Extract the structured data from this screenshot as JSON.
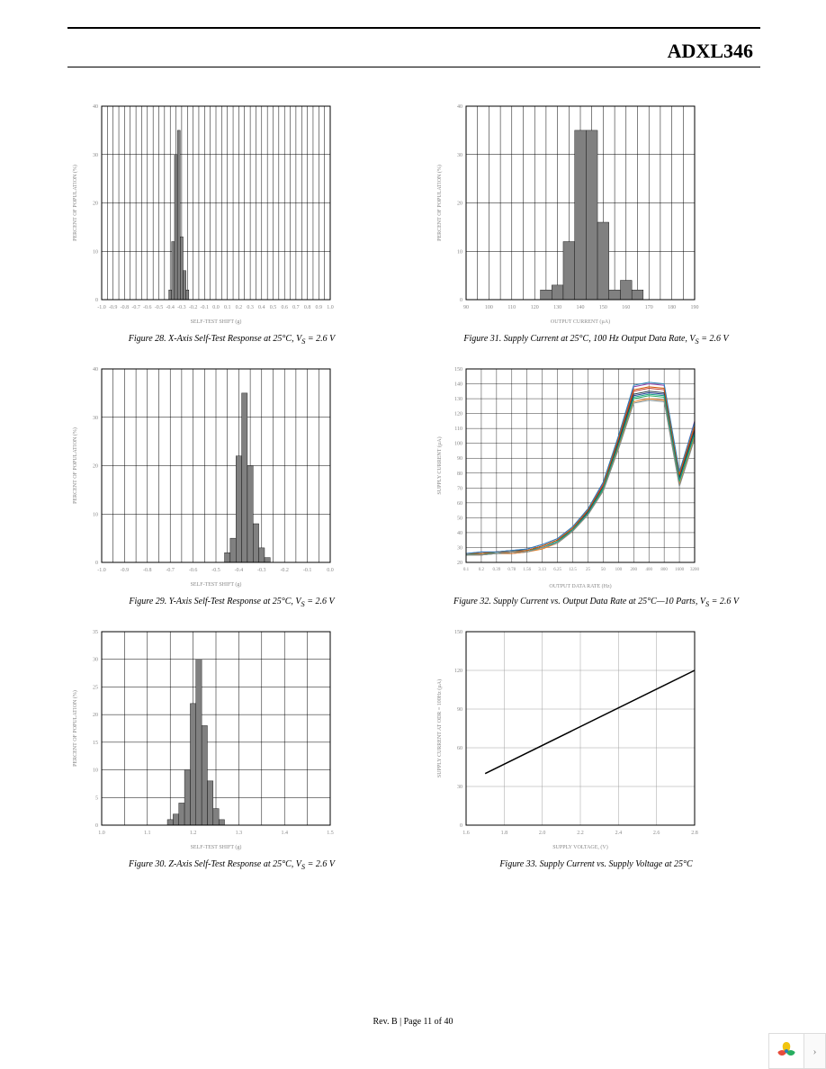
{
  "header": {
    "part_number": "ADXL346"
  },
  "footer": {
    "text": "Rev. B | Page 11 of 40"
  },
  "charts": {
    "fig28": {
      "type": "histogram",
      "caption": "Figure 28. X-Axis Self-Test Response at 25°C, V",
      "caption_suffix": " = 2.6 V",
      "xlabel": "SELF-TEST SHIFT (g)",
      "ylabel": "PERCENT OF POPULATION (%)",
      "xlim": [
        -1.0,
        1.0
      ],
      "xtick_step": 0.1,
      "ylim": [
        0,
        40
      ],
      "ytick_step": 10,
      "bin_width": 0.025,
      "bar_color": "#808080",
      "grid_color": "#000000",
      "background_color": "#ffffff",
      "axis_fontsize": 6,
      "bars": [
        {
          "x": -0.4,
          "y": 2
        },
        {
          "x": -0.375,
          "y": 12
        },
        {
          "x": -0.35,
          "y": 30
        },
        {
          "x": -0.325,
          "y": 35
        },
        {
          "x": -0.3,
          "y": 13
        },
        {
          "x": -0.275,
          "y": 6
        },
        {
          "x": -0.25,
          "y": 2
        }
      ]
    },
    "fig29": {
      "type": "histogram",
      "caption": "Figure 29. Y-Axis Self-Test Response at 25°C, V",
      "caption_suffix": " = 2.6 V",
      "xlabel": "SELF-TEST SHIFT (g)",
      "ylabel": "PERCENT OF POPULATION (%)",
      "xlim": [
        -1.0,
        0.0
      ],
      "xtick_step": 0.1,
      "ylim": [
        0,
        40
      ],
      "ytick_step": 10,
      "bin_width": 0.025,
      "bar_color": "#808080",
      "grid_color": "#000000",
      "background_color": "#ffffff",
      "axis_fontsize": 6,
      "bars": [
        {
          "x": -0.45,
          "y": 2
        },
        {
          "x": -0.425,
          "y": 5
        },
        {
          "x": -0.4,
          "y": 22
        },
        {
          "x": -0.375,
          "y": 35
        },
        {
          "x": -0.35,
          "y": 20
        },
        {
          "x": -0.325,
          "y": 8
        },
        {
          "x": -0.3,
          "y": 3
        },
        {
          "x": -0.275,
          "y": 1
        }
      ]
    },
    "fig30": {
      "type": "histogram",
      "caption": "Figure 30. Z-Axis Self-Test Response at 25°C, V",
      "caption_suffix": " = 2.6 V",
      "xlabel": "SELF-TEST SHIFT (g)",
      "ylabel": "PERCENT OF POPULATION (%)",
      "xlim": [
        1.0,
        1.5
      ],
      "xtick_step": 0.1,
      "ylim": [
        0,
        35
      ],
      "ytick_step": 5,
      "bin_width": 0.0125,
      "bar_color": "#808080",
      "grid_color": "#000000",
      "background_color": "#ffffff",
      "axis_fontsize": 6,
      "bars": [
        {
          "x": 1.15,
          "y": 1
        },
        {
          "x": 1.1625,
          "y": 2
        },
        {
          "x": 1.175,
          "y": 4
        },
        {
          "x": 1.1875,
          "y": 10
        },
        {
          "x": 1.2,
          "y": 22
        },
        {
          "x": 1.2125,
          "y": 30
        },
        {
          "x": 1.225,
          "y": 18
        },
        {
          "x": 1.2375,
          "y": 8
        },
        {
          "x": 1.25,
          "y": 3
        },
        {
          "x": 1.2625,
          "y": 1
        }
      ]
    },
    "fig31": {
      "type": "histogram",
      "caption": "Figure 31. Supply Current at 25°C, 100 Hz Output Data Rate, V",
      "caption_suffix": " = 2.6 V",
      "xlabel": "OUTPUT CURRENT (µA)",
      "ylabel": "PERCENT OF POPULATION (%)",
      "xlim": [
        90,
        190
      ],
      "xtick_step": 10,
      "ylim": [
        0,
        40
      ],
      "ytick_step": 10,
      "bin_width": 5,
      "bar_color": "#808080",
      "grid_color": "#000000",
      "background_color": "#ffffff",
      "axis_fontsize": 6,
      "bars": [
        {
          "x": 125,
          "y": 2
        },
        {
          "x": 130,
          "y": 3
        },
        {
          "x": 135,
          "y": 12
        },
        {
          "x": 140,
          "y": 35
        },
        {
          "x": 145,
          "y": 35
        },
        {
          "x": 150,
          "y": 16
        },
        {
          "x": 155,
          "y": 2
        },
        {
          "x": 160,
          "y": 4
        },
        {
          "x": 165,
          "y": 2
        }
      ]
    },
    "fig32": {
      "type": "line",
      "caption": "Figure 32. Supply Current vs. Output Data Rate at 25°C—10 Parts, V",
      "caption_suffix": " = 2.6 V",
      "xlabel": "OUTPUT DATA RATE (Hz)",
      "ylabel": "SUPPLY CURRENT (µA)",
      "x_categories": [
        "0.1",
        "0.2",
        "0.39",
        "0.78",
        "1.56",
        "3.13",
        "6.25",
        "12.5",
        "25",
        "50",
        "100",
        "200",
        "400",
        "800",
        "1600",
        "3200"
      ],
      "ylim": [
        20,
        150
      ],
      "ytick_step": 10,
      "grid_color": "#000000",
      "background_color": "#ffffff",
      "axis_fontsize": 6,
      "line_width": 1,
      "series": [
        {
          "color": "#1f3a93",
          "y": [
            25,
            25,
            26,
            26,
            27,
            30,
            34,
            42,
            54,
            70,
            100,
            132,
            134,
            133,
            76,
            108
          ]
        },
        {
          "color": "#c0392b",
          "y": [
            26,
            26,
            27,
            27,
            28,
            31,
            35,
            43,
            55,
            72,
            102,
            135,
            137,
            136,
            78,
            110
          ]
        },
        {
          "color": "#27ae60",
          "y": [
            25,
            26,
            26,
            27,
            27,
            30,
            34,
            41,
            53,
            69,
            98,
            130,
            132,
            131,
            74,
            106
          ]
        },
        {
          "color": "#8e44ad",
          "y": [
            26,
            27,
            27,
            28,
            29,
            32,
            36,
            44,
            56,
            73,
            104,
            138,
            140,
            139,
            80,
            115
          ]
        },
        {
          "color": "#e67e22",
          "y": [
            25,
            25,
            26,
            26,
            27,
            29,
            33,
            41,
            52,
            68,
            97,
            128,
            130,
            129,
            72,
            104
          ]
        },
        {
          "color": "#2c3e50",
          "y": [
            26,
            26,
            27,
            28,
            28,
            31,
            35,
            42,
            54,
            71,
            101,
            133,
            135,
            134,
            77,
            109
          ]
        },
        {
          "color": "#16a085",
          "y": [
            25,
            26,
            26,
            27,
            28,
            30,
            34,
            42,
            53,
            70,
            99,
            131,
            133,
            132,
            75,
            107
          ]
        },
        {
          "color": "#d35400",
          "y": [
            26,
            26,
            27,
            27,
            28,
            31,
            35,
            43,
            55,
            72,
            103,
            136,
            138,
            137,
            79,
            112
          ]
        },
        {
          "color": "#7f8c8d",
          "y": [
            25,
            25,
            26,
            27,
            27,
            30,
            33,
            41,
            52,
            68,
            96,
            127,
            129,
            128,
            71,
            103
          ]
        },
        {
          "color": "#2980b9",
          "y": [
            26,
            27,
            27,
            28,
            29,
            32,
            36,
            44,
            56,
            74,
            105,
            139,
            141,
            140,
            81,
            114
          ]
        }
      ]
    },
    "fig33": {
      "type": "line",
      "caption": "Figure 33. Supply Current vs. Supply Voltage at 25°C",
      "caption_suffix": "",
      "xlabel": "SUPPLY VOLTAGE,     (V)",
      "ylabel": "SUPPLY CURRENT AT ODR = 100Hz (µA)",
      "xlim": [
        1.6,
        2.8
      ],
      "xtick_step": 0.2,
      "ylim": [
        0,
        150
      ],
      "ytick_step": 30,
      "grid_color": "#a0a0a0",
      "background_color": "#ffffff",
      "axis_fontsize": 6,
      "line_width": 1.5,
      "series": [
        {
          "color": "#000000",
          "points": [
            [
              1.7,
              40
            ],
            [
              2.8,
              120
            ]
          ]
        }
      ]
    }
  },
  "widget": {
    "chevron": "›"
  }
}
